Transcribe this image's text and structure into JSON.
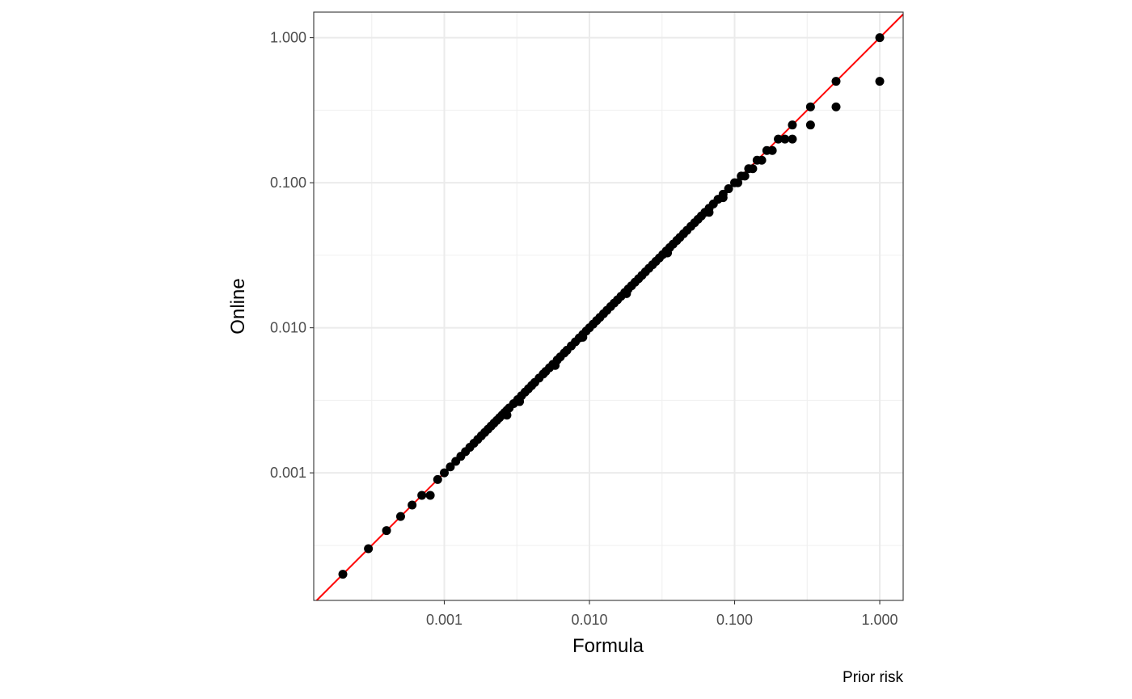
{
  "chart_data": {
    "type": "scatter",
    "title": "",
    "xlabel": "Formula",
    "ylabel": "Online",
    "caption": "Prior risk",
    "x_scale": "log10",
    "y_scale": "log10",
    "xlim": [
      0.000126,
      1.45
    ],
    "ylim": [
      0.000132,
      1.5
    ],
    "x_ticks": [
      {
        "value": 0.001,
        "label": "0.001"
      },
      {
        "value": 0.01,
        "label": "0.010"
      },
      {
        "value": 0.1,
        "label": "0.100"
      },
      {
        "value": 1,
        "label": "1.000"
      }
    ],
    "y_ticks": [
      {
        "value": 0.001,
        "label": "0.001"
      },
      {
        "value": 0.01,
        "label": "0.010"
      },
      {
        "value": 0.1,
        "label": "0.100"
      },
      {
        "value": 1,
        "label": "1.000"
      }
    ],
    "grid": true,
    "reference_line": {
      "type": "identity",
      "color": "#ff0000"
    },
    "point_color": "#000000",
    "series": [
      {
        "points": [
          [
            0.0002,
            0.0002
          ],
          [
            0.0003,
            0.0003
          ],
          [
            0.0004,
            0.0004
          ],
          [
            0.0005,
            0.0005
          ],
          [
            0.0006,
            0.0006
          ],
          [
            0.0007,
            0.0007
          ],
          [
            0.0008,
            0.0007
          ],
          [
            0.0009,
            0.0009
          ],
          [
            0.001,
            0.001
          ],
          [
            0.0011,
            0.0011
          ],
          [
            0.0012,
            0.0012
          ],
          [
            0.0013,
            0.0013
          ],
          [
            0.0014,
            0.0014
          ],
          [
            0.0015,
            0.0015
          ],
          [
            0.0016,
            0.0016
          ],
          [
            0.0017,
            0.0017
          ],
          [
            0.0018,
            0.0018
          ],
          [
            0.0019,
            0.0019
          ],
          [
            0.002,
            0.002
          ],
          [
            0.0021,
            0.0021
          ],
          [
            0.0022,
            0.0022
          ],
          [
            0.0023,
            0.0023
          ],
          [
            0.0024,
            0.0024
          ],
          [
            0.0025,
            0.0025
          ],
          [
            0.0026,
            0.0026
          ],
          [
            0.0027,
            0.0027
          ],
          [
            0.0028,
            0.0028
          ],
          [
            0.003,
            0.003
          ],
          [
            0.0032,
            0.0032
          ],
          [
            0.0034,
            0.0034
          ],
          [
            0.0036,
            0.0036
          ],
          [
            0.0038,
            0.0038
          ],
          [
            0.004,
            0.004
          ],
          [
            0.0042,
            0.0042
          ],
          [
            0.0045,
            0.0045
          ],
          [
            0.0048,
            0.0048
          ],
          [
            0.005,
            0.005
          ],
          [
            0.0053,
            0.0053
          ],
          [
            0.0056,
            0.0056
          ],
          [
            0.006,
            0.006
          ],
          [
            0.0063,
            0.0063
          ],
          [
            0.0067,
            0.0067
          ],
          [
            0.007,
            0.007
          ],
          [
            0.0075,
            0.0075
          ],
          [
            0.008,
            0.008
          ],
          [
            0.0085,
            0.0085
          ],
          [
            0.009,
            0.009
          ],
          [
            0.0095,
            0.0095
          ],
          [
            0.01,
            0.01
          ],
          [
            0.0106,
            0.0106
          ],
          [
            0.0112,
            0.0112
          ],
          [
            0.0118,
            0.0118
          ],
          [
            0.0125,
            0.0125
          ],
          [
            0.0132,
            0.0132
          ],
          [
            0.014,
            0.014
          ],
          [
            0.0148,
            0.0148
          ],
          [
            0.0156,
            0.0156
          ],
          [
            0.0165,
            0.0165
          ],
          [
            0.0175,
            0.0175
          ],
          [
            0.0185,
            0.0185
          ],
          [
            0.0195,
            0.0195
          ],
          [
            0.0206,
            0.0206
          ],
          [
            0.0218,
            0.0218
          ],
          [
            0.023,
            0.023
          ],
          [
            0.0243,
            0.0243
          ],
          [
            0.0257,
            0.0257
          ],
          [
            0.0272,
            0.0272
          ],
          [
            0.0287,
            0.0287
          ],
          [
            0.0303,
            0.0303
          ],
          [
            0.032,
            0.032
          ],
          [
            0.0338,
            0.0338
          ],
          [
            0.0357,
            0.0357
          ],
          [
            0.0377,
            0.0377
          ],
          [
            0.04,
            0.04
          ],
          [
            0.042,
            0.042
          ],
          [
            0.0445,
            0.0445
          ],
          [
            0.047,
            0.047
          ],
          [
            0.05,
            0.05
          ],
          [
            0.053,
            0.053
          ],
          [
            0.056,
            0.056
          ],
          [
            0.059,
            0.059
          ],
          [
            0.0625,
            0.0625
          ],
          [
            0.0667,
            0.0667
          ],
          [
            0.0714,
            0.0714
          ],
          [
            0.0769,
            0.0769
          ],
          [
            0.0833,
            0.0833
          ],
          [
            0.0909,
            0.0909
          ],
          [
            0.1,
            0.1
          ],
          [
            0.1111,
            0.1111
          ],
          [
            0.125,
            0.125
          ],
          [
            0.1429,
            0.1429
          ],
          [
            0.1667,
            0.1667
          ],
          [
            0.2,
            0.2
          ],
          [
            0.25,
            0.25
          ],
          [
            0.3333,
            0.3333
          ],
          [
            0.5,
            0.5
          ],
          [
            1,
            1
          ],
          [
            0.1053,
            0.1
          ],
          [
            0.1176,
            0.1111
          ],
          [
            0.1333,
            0.125
          ],
          [
            0.1538,
            0.1429
          ],
          [
            0.1818,
            0.1667
          ],
          [
            0.2222,
            0.2
          ],
          [
            0.25,
            0.2
          ],
          [
            0.3333,
            0.25
          ],
          [
            0.5,
            0.3333
          ],
          [
            1,
            0.5
          ],
          [
            0.0027,
            0.0025
          ],
          [
            0.0033,
            0.0031
          ],
          [
            0.0058,
            0.0055
          ],
          [
            0.009,
            0.0086
          ],
          [
            0.018,
            0.0172
          ],
          [
            0.0345,
            0.0328
          ],
          [
            0.0667,
            0.0625
          ],
          [
            0.0833,
            0.0789
          ]
        ]
      }
    ]
  }
}
